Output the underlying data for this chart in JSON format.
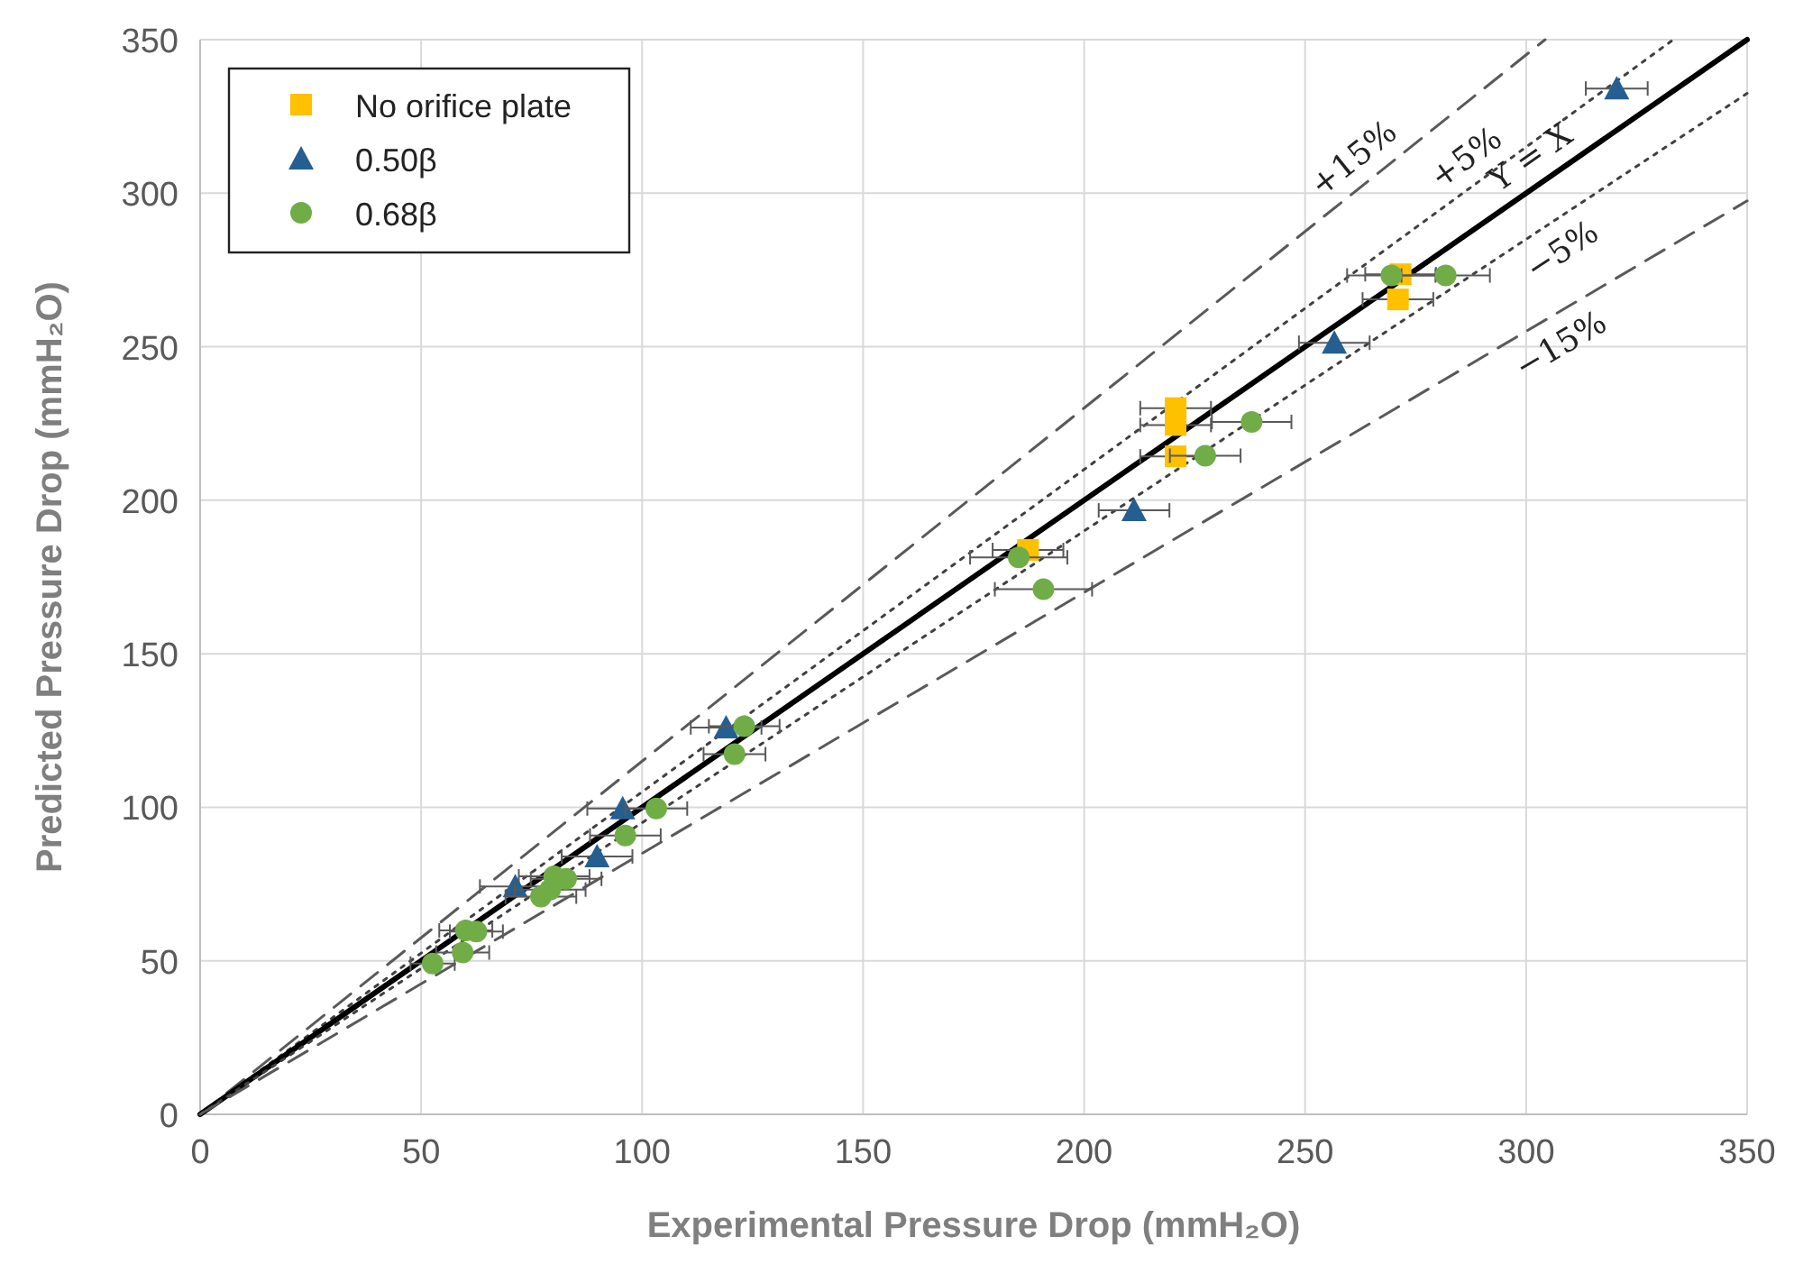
{
  "chart_data": {
    "type": "scatter",
    "xlabel": "Experimental Pressure Drop (mmH₂O)",
    "ylabel": "Predicted Pressure Drop (mmH₂O)",
    "xlim": [
      0,
      350
    ],
    "ylim": [
      0,
      350
    ],
    "xticks": [
      0,
      50,
      100,
      150,
      200,
      250,
      300,
      350
    ],
    "yticks": [
      0,
      50,
      100,
      150,
      200,
      250,
      300,
      350
    ],
    "grid": true,
    "legend": "top left",
    "series": [
      {
        "name": "+15%",
        "type": "line",
        "color": "#595959",
        "line_style": "dashed",
        "marker": "none",
        "x": [
          0,
          304.3
        ],
        "values": [
          0,
          350
        ]
      },
      {
        "name": "+5%",
        "type": "line",
        "color": "#404040",
        "line_style": "dotted",
        "marker": "none",
        "x": [
          0,
          333.3
        ],
        "values": [
          0,
          350
        ]
      },
      {
        "name": "Y = X",
        "type": "line",
        "color": "#000000",
        "line_style": "solid",
        "marker": "none",
        "x": [
          0,
          350
        ],
        "values": [
          0,
          350
        ]
      },
      {
        "name": "−5%",
        "type": "line",
        "color": "#404040",
        "line_style": "dotted",
        "marker": "none",
        "x": [
          0,
          350
        ],
        "values": [
          0,
          332.5
        ]
      },
      {
        "name": "−15%",
        "type": "line",
        "color": "#595959",
        "line_style": "dashed",
        "marker": "none",
        "x": [
          0,
          350
        ],
        "values": [
          0,
          297.5
        ]
      },
      {
        "name": "No orifice plate",
        "color": "#ffc000",
        "marker": "square",
        "x": [
          187.3,
          220.7,
          220.7,
          220.7,
          271.6,
          271
        ],
        "values": [
          183.8,
          230,
          224.5,
          214.3,
          273.6,
          265.4
        ],
        "xerrors": [
          8,
          8,
          8,
          8,
          8,
          8
        ]
      },
      {
        "name": "0.50β",
        "color": "#255e91",
        "marker": "triangle",
        "x": [
          320.5,
          256.6,
          211.3,
          119,
          95.6,
          89.8,
          71.3
        ],
        "values": [
          334.1,
          251.3,
          196.7,
          126,
          99.6,
          84,
          74.2
        ],
        "xerrors": [
          7,
          8,
          8,
          8,
          8,
          8,
          8
        ]
      },
      {
        "name": "0.68β",
        "color": "#70ad47",
        "marker": "circle",
        "x": [
          269.5,
          281.8,
          237.9,
          227.4,
          185.2,
          190.8,
          123.1,
          120.9,
          103.2,
          96.2,
          80.1,
          82.8,
          77.1,
          79.2,
          60.1,
          62.5,
          59.4,
          52.6
        ],
        "values": [
          273.2,
          273.2,
          225.5,
          214.5,
          181.4,
          171,
          126.4,
          117.3,
          99.6,
          90.8,
          77.5,
          76.7,
          70.9,
          73.2,
          59.9,
          59.5,
          52.7,
          49.1
        ],
        "xerrors": [
          10,
          10,
          9,
          8,
          11,
          11,
          8,
          7,
          7,
          8,
          8,
          8,
          8,
          8,
          6,
          6,
          6,
          5
        ]
      }
    ]
  }
}
